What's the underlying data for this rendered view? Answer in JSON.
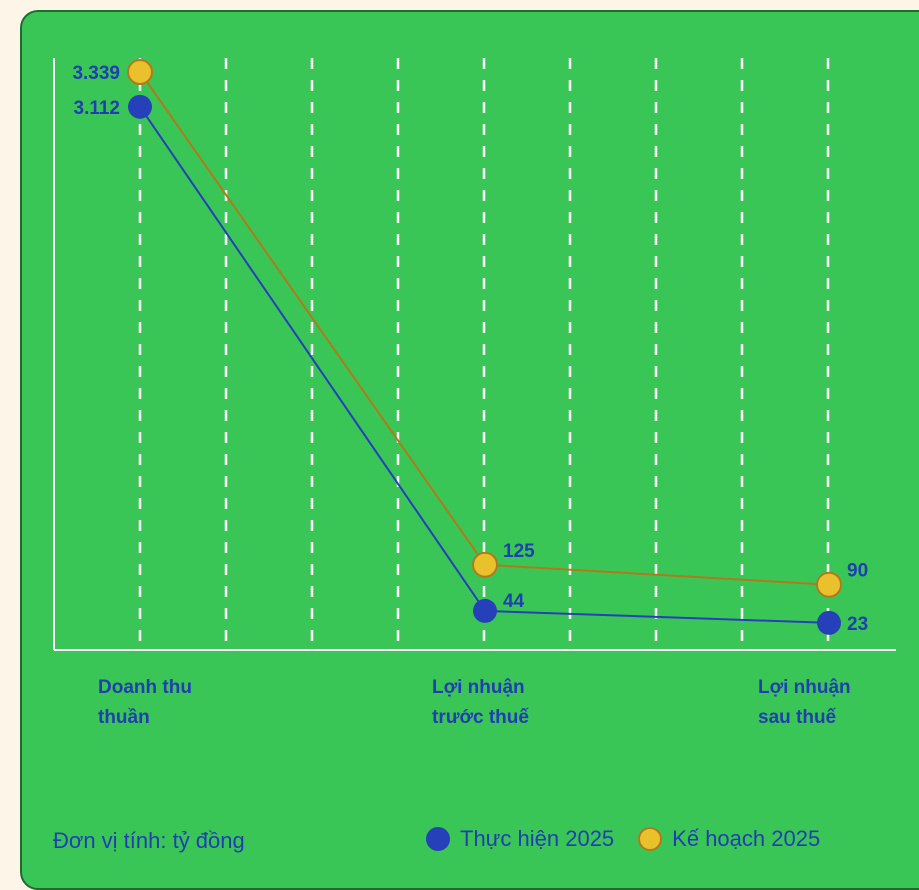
{
  "chart_data": {
    "type": "line",
    "categories": [
      "Doanh thu thuần",
      "Lợi nhuận trước thuế",
      "Lợi nhuận sau thuế"
    ],
    "category_lines": [
      [
        "Doanh thu",
        "thuần"
      ],
      [
        "Lợi nhuận",
        "trước thuế"
      ],
      [
        "Lợi nhuận",
        "sau thuế"
      ]
    ],
    "series": [
      {
        "name": "Thực hiện 2025",
        "values": [
          3112,
          44,
          23
        ],
        "labels": [
          "3.112",
          "44",
          "23"
        ],
        "color": "#2540b8",
        "line_color": "#2540b8"
      },
      {
        "name": "Kế hoạch 2025",
        "values": [
          3339,
          125,
          90
        ],
        "labels": [
          "3.339",
          "125",
          "90"
        ],
        "color": "#e8c12c",
        "line_color": "#b07a1c"
      }
    ],
    "grid": "vertical-dashed",
    "legend": "bottom-right"
  },
  "footer": {
    "unit_note": "Đơn vị tính: tỷ đồng"
  },
  "colors": {
    "background": "#3ac657",
    "text": "#1f3fb0",
    "grid": "#ffffff"
  }
}
